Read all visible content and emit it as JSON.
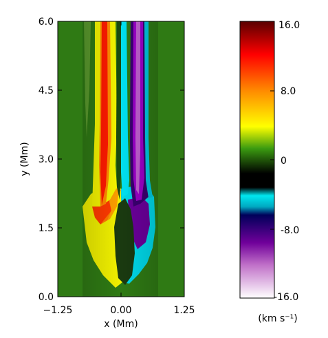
{
  "chart_data": {
    "type": "heatmap",
    "title": "",
    "xlabel": "x (Mm)",
    "ylabel": "y (Mm)",
    "xlim": [
      -1.25,
      1.25
    ],
    "ylim": [
      0.0,
      6.0
    ],
    "x_ticks": [
      "−1.25",
      "0.00",
      "1.25"
    ],
    "y_ticks": [
      "0.0",
      "1.5",
      "3.0",
      "4.5",
      "6.0"
    ],
    "background_color": "#2f7a14",
    "plumes": [
      {
        "name": "",
        "x_center": -0.33,
        "color": "#ffff00",
        "y_top": 6.0
      },
      {
        "name": "",
        "x_center": -0.42,
        "color": "#ff5a00",
        "y_top": 6.0
      },
      {
        "name": "",
        "x_center": 0.1,
        "color": "#00e0f0",
        "y_top": 6.0
      },
      {
        "name": "",
        "x_center": 0.3,
        "color": "#8a00b4",
        "y_top": 6.0
      }
    ],
    "colorbar": {
      "range": [
        -16.0,
        16.0
      ],
      "tick_labels": [
        "16.0",
        "8.0",
        "0",
        "-8.0",
        "-16.0"
      ],
      "unit_label": "(km s⁻¹)",
      "colors_top_to_bottom": [
        "#7a0000",
        "#ff0000",
        "#ff8000",
        "#ffff00",
        "#2a8a10",
        "#000000",
        "#00e0f0",
        "#00005a",
        "#8a00b4",
        "#ffffff"
      ]
    }
  }
}
